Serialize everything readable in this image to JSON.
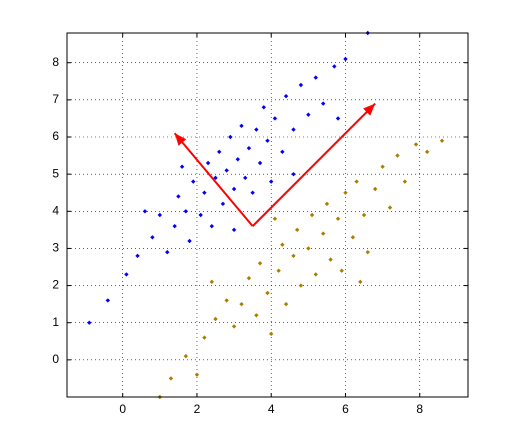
{
  "chart_data": {
    "type": "scatter",
    "xlim": [
      -1.5,
      9.3
    ],
    "ylim": [
      -1,
      8.8
    ],
    "xticks": [
      0,
      2,
      4,
      6,
      8
    ],
    "yticks": [
      0,
      1,
      2,
      3,
      4,
      5,
      6,
      7,
      8
    ],
    "grid": true,
    "series": [
      {
        "color": "#0000ff",
        "x": [
          -0.9,
          -0.4,
          0.1,
          0.4,
          0.8,
          1.0,
          1.2,
          1.4,
          1.5,
          1.7,
          1.8,
          1.9,
          2.1,
          2.2,
          2.3,
          2.4,
          2.5,
          2.6,
          2.7,
          2.8,
          2.9,
          3.0,
          3.1,
          3.2,
          3.3,
          3.4,
          3.5,
          3.6,
          3.7,
          3.8,
          3.9,
          4.0,
          4.1,
          4.3,
          4.4,
          4.6,
          4.8,
          5.0,
          5.2,
          5.4,
          5.7,
          6.0,
          6.6,
          1.6,
          3.0,
          4.6,
          0.6,
          5.8
        ],
        "y": [
          1.0,
          1.6,
          2.3,
          2.8,
          3.3,
          3.9,
          2.9,
          3.6,
          4.4,
          4.0,
          3.2,
          4.8,
          3.9,
          4.5,
          5.3,
          3.6,
          4.9,
          5.6,
          4.2,
          5.1,
          6.0,
          4.6,
          5.4,
          6.3,
          4.9,
          5.7,
          4.5,
          6.2,
          5.3,
          6.8,
          5.9,
          4.8,
          6.5,
          5.6,
          7.1,
          6.2,
          7.4,
          6.6,
          7.6,
          6.9,
          7.9,
          8.1,
          8.8,
          5.2,
          3.5,
          5.0,
          4.0,
          6.5
        ]
      },
      {
        "color": "#aa7f00",
        "x": [
          1.0,
          1.3,
          1.7,
          2.2,
          2.5,
          2.8,
          3.0,
          3.2,
          3.4,
          3.6,
          3.7,
          3.9,
          4.0,
          4.2,
          4.3,
          4.4,
          4.6,
          4.7,
          4.8,
          5.0,
          5.1,
          5.2,
          5.4,
          5.5,
          5.6,
          5.8,
          5.9,
          6.0,
          6.2,
          6.3,
          6.5,
          6.6,
          6.8,
          7.0,
          7.2,
          7.4,
          7.6,
          7.9,
          8.2,
          8.6,
          2.4,
          6.4,
          4.1,
          2.0
        ],
        "y": [
          -1.0,
          -0.5,
          0.1,
          0.6,
          1.1,
          1.6,
          0.9,
          1.5,
          2.2,
          1.2,
          2.6,
          1.8,
          0.7,
          2.4,
          3.1,
          1.5,
          2.8,
          3.5,
          2.0,
          3.0,
          3.9,
          2.3,
          3.4,
          4.2,
          2.7,
          3.8,
          2.4,
          4.5,
          3.3,
          4.8,
          3.9,
          2.9,
          4.6,
          5.2,
          4.1,
          5.5,
          4.8,
          5.8,
          5.6,
          5.9,
          2.1,
          2.1,
          3.8,
          -0.4
        ]
      }
    ],
    "arrows": [
      {
        "color": "#ff0000",
        "x": [
          3.5,
          1.4
        ],
        "y": [
          3.6,
          6.1
        ]
      },
      {
        "color": "#ff0000",
        "x": [
          3.5,
          6.8
        ],
        "y": [
          3.6,
          6.9
        ]
      }
    ]
  }
}
